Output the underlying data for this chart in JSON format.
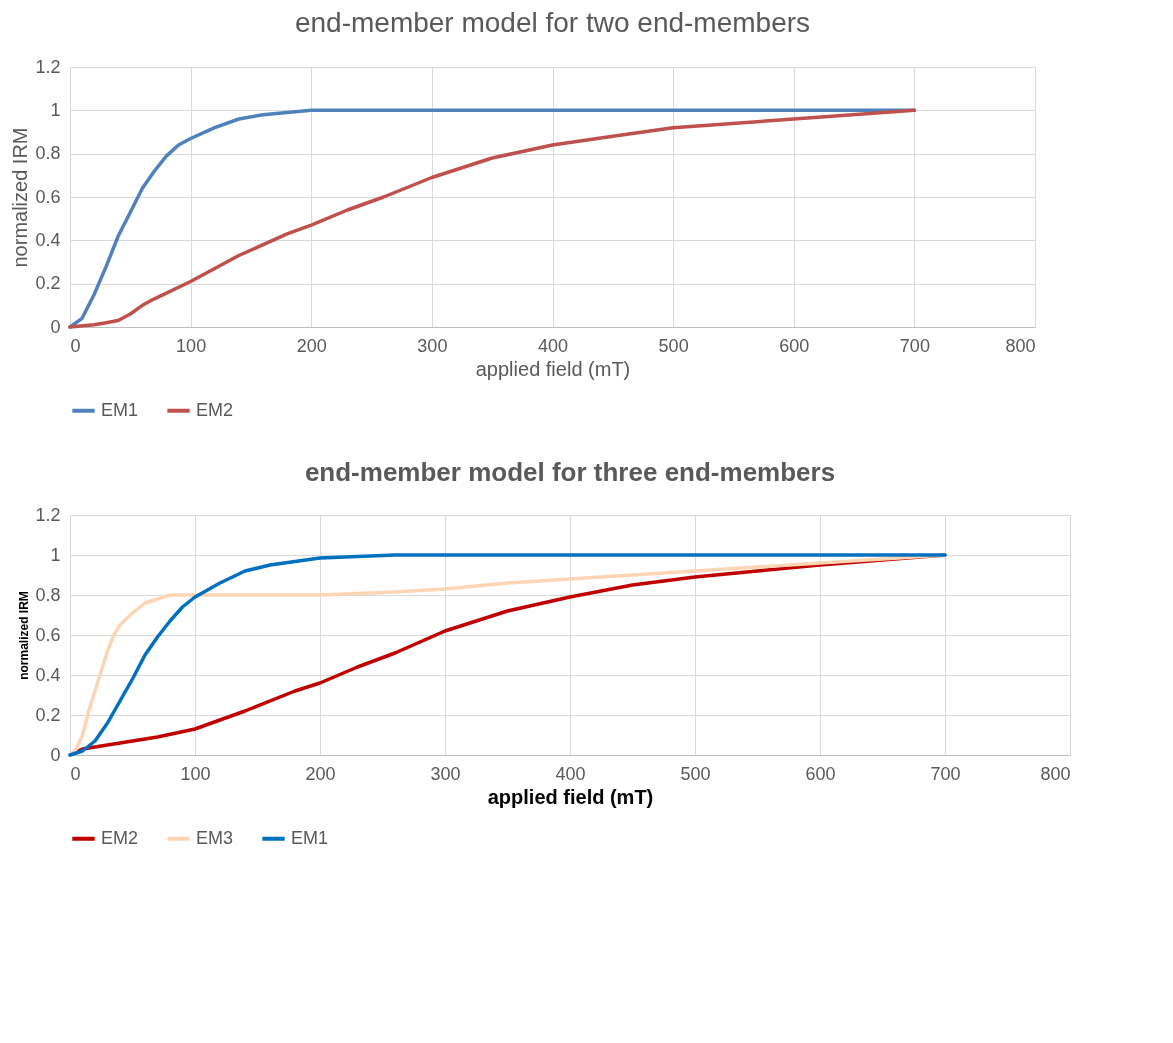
{
  "chart_data": [
    {
      "type": "line",
      "title": "end-member model for two end-members",
      "xlabel": "applied field (mT)",
      "ylabel": "normalized IRM",
      "xlim": [
        0,
        800
      ],
      "xticks": [
        0,
        100,
        200,
        300,
        400,
        500,
        600,
        700,
        800
      ],
      "ylim": [
        0,
        1.2
      ],
      "yticks": [
        0,
        0.2,
        0.4,
        0.6,
        0.8,
        1,
        1.2
      ],
      "grid": true,
      "legend": "bottom",
      "series": [
        {
          "name": "EM1",
          "color": "#4f81bd",
          "x": [
            0,
            10,
            20,
            30,
            40,
            50,
            60,
            70,
            80,
            90,
            100,
            120,
            140,
            160,
            200,
            700
          ],
          "values": [
            0,
            0.04,
            0.15,
            0.28,
            0.42,
            0.53,
            0.64,
            0.72,
            0.79,
            0.84,
            0.87,
            0.92,
            0.96,
            0.98,
            1,
            1
          ]
        },
        {
          "name": "EM2",
          "color": "#c0504d",
          "x": [
            0,
            20,
            30,
            40,
            50,
            60,
            70,
            100,
            140,
            180,
            200,
            230,
            260,
            300,
            350,
            400,
            450,
            500,
            600,
            700
          ],
          "values": [
            0,
            0.01,
            0.02,
            0.03,
            0.06,
            0.1,
            0.13,
            0.21,
            0.33,
            0.43,
            0.47,
            0.54,
            0.6,
            0.69,
            0.78,
            0.84,
            0.88,
            0.92,
            0.96,
            1
          ]
        }
      ]
    },
    {
      "type": "line",
      "title": "end-member model for three end-members",
      "xlabel": "applied field (mT)",
      "ylabel": "normalized IRM",
      "xlim": [
        0,
        800
      ],
      "xticks": [
        0,
        100,
        200,
        300,
        400,
        500,
        600,
        700,
        800
      ],
      "ylim": [
        0,
        1.2
      ],
      "yticks": [
        0,
        0.2,
        0.4,
        0.6,
        0.8,
        1,
        1.2
      ],
      "grid": true,
      "legend": "bottom",
      "series": [
        {
          "name": "EM2",
          "color": "#c00000",
          "x": [
            0,
            10,
            20,
            30,
            50,
            70,
            100,
            140,
            180,
            200,
            230,
            260,
            300,
            350,
            400,
            450,
            500,
            550,
            600,
            700
          ],
          "values": [
            0,
            0.03,
            0.04,
            0.05,
            0.07,
            0.09,
            0.13,
            0.22,
            0.32,
            0.36,
            0.44,
            0.51,
            0.62,
            0.72,
            0.79,
            0.85,
            0.89,
            0.92,
            0.95,
            1
          ]
        },
        {
          "name": "EM3",
          "color": "#fcd5b5",
          "x": [
            0,
            5,
            10,
            15,
            20,
            25,
            30,
            35,
            40,
            50,
            60,
            70,
            80,
            100,
            200,
            260,
            300,
            350,
            400,
            450,
            500,
            600,
            700
          ],
          "values": [
            0,
            0.03,
            0.1,
            0.22,
            0.32,
            0.42,
            0.52,
            0.6,
            0.65,
            0.71,
            0.76,
            0.78,
            0.8,
            0.8,
            0.8,
            0.815,
            0.83,
            0.86,
            0.88,
            0.9,
            0.92,
            0.96,
            1
          ]
        },
        {
          "name": "EM1",
          "color": "#0070c0",
          "x": [
            0,
            10,
            20,
            30,
            40,
            50,
            60,
            70,
            80,
            90,
            100,
            120,
            140,
            160,
            200,
            260,
            700
          ],
          "values": [
            0,
            0.02,
            0.07,
            0.16,
            0.27,
            0.38,
            0.5,
            0.59,
            0.67,
            0.74,
            0.79,
            0.86,
            0.92,
            0.95,
            0.985,
            1,
            1
          ]
        }
      ]
    }
  ]
}
